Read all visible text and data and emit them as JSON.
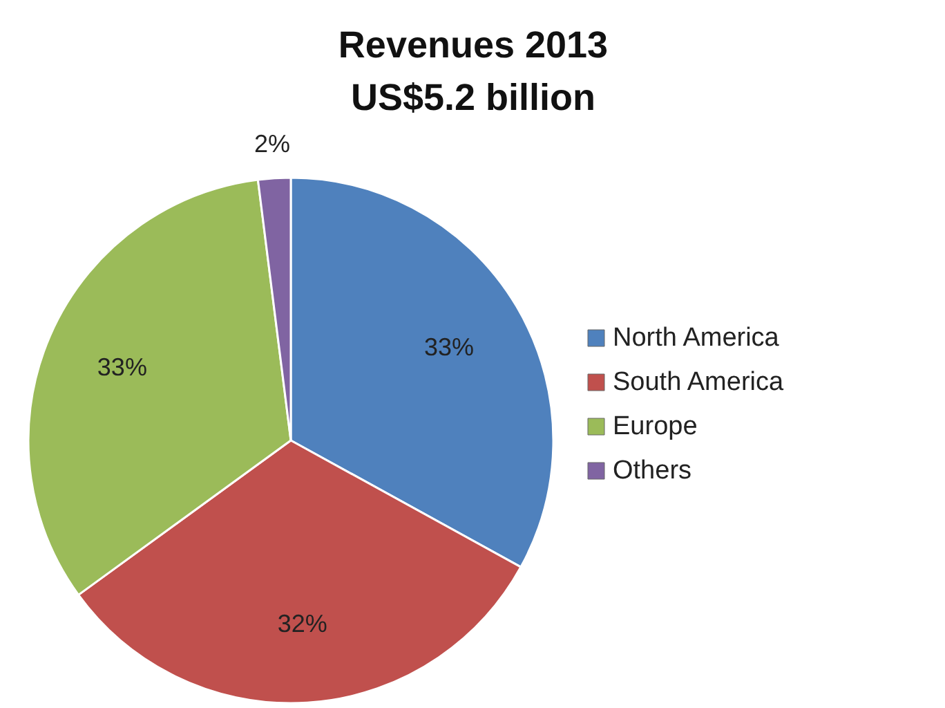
{
  "chart_data": {
    "type": "pie",
    "title": "Revenues 2013\nUS$5.2 billion",
    "categories": [
      "North America",
      "South America",
      "Europe",
      "Others"
    ],
    "values": [
      33,
      32,
      33,
      2
    ],
    "colors": [
      "#4f81bd",
      "#c0504d",
      "#9bbb59",
      "#8064a2"
    ],
    "value_labels": [
      "33%",
      "32%",
      "33%",
      "2%"
    ],
    "legend": "right"
  }
}
